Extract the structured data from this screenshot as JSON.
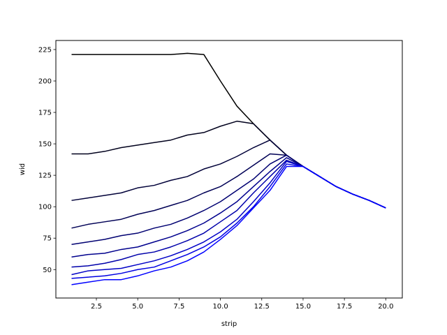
{
  "chart_data": {
    "type": "line",
    "title": "",
    "xlabel": "strip",
    "ylabel": "wid",
    "xlim": [
      0.05,
      21.0
    ],
    "ylim": [
      27.4,
      232.2
    ],
    "xticks": [
      2.5,
      5.0,
      7.5,
      10.0,
      12.5,
      15.0,
      17.5,
      20.0
    ],
    "xtick_labels": [
      "2.5",
      "5.0",
      "7.5",
      "10.0",
      "12.5",
      "15.0",
      "17.5",
      "20.0"
    ],
    "yticks": [
      50,
      75,
      100,
      125,
      150,
      175,
      200,
      225
    ],
    "ytick_labels": [
      "50",
      "75",
      "100",
      "125",
      "150",
      "175",
      "200",
      "225"
    ],
    "grid": false,
    "legend": "none",
    "x": [
      1,
      2,
      3,
      4,
      5,
      6,
      7,
      8,
      9,
      10,
      11,
      12,
      13,
      14,
      15,
      16,
      17,
      18,
      19,
      20
    ],
    "series": [
      {
        "color": "#000000",
        "values": [
          221,
          221,
          221,
          221,
          221,
          221,
          221,
          222,
          221,
          200,
          180,
          166,
          153,
          141,
          132,
          124,
          116,
          110,
          105,
          99
        ]
      },
      {
        "color": "#00001c",
        "values": [
          142,
          142,
          144,
          147,
          149,
          151,
          153,
          157,
          159,
          164,
          168,
          166,
          153,
          141,
          132,
          124,
          116,
          110,
          105,
          99
        ]
      },
      {
        "color": "#000038",
        "values": [
          105,
          107,
          109,
          111,
          115,
          117,
          121,
          124,
          130,
          134,
          140,
          147,
          153,
          141,
          132,
          124,
          116,
          110,
          105,
          99
        ]
      },
      {
        "color": "#000055",
        "values": [
          83,
          86,
          88,
          90,
          94,
          97,
          101,
          105,
          111,
          116,
          124,
          133,
          142,
          141,
          132,
          124,
          116,
          110,
          105,
          99
        ]
      },
      {
        "color": "#000071",
        "values": [
          70,
          72,
          74,
          77,
          79,
          83,
          86,
          91,
          97,
          104,
          113,
          122,
          134,
          141,
          132,
          124,
          116,
          110,
          105,
          99
        ]
      },
      {
        "color": "#00008d",
        "values": [
          60,
          62,
          63,
          66,
          68,
          72,
          76,
          81,
          87,
          95,
          104,
          116,
          128,
          139,
          132,
          124,
          116,
          110,
          105,
          99
        ]
      },
      {
        "color": "#0000aa",
        "values": [
          52,
          53,
          55,
          58,
          62,
          64,
          68,
          73,
          79,
          88,
          97,
          111,
          124,
          137,
          132,
          124,
          116,
          110,
          105,
          99
        ]
      },
      {
        "color": "#0000c6",
        "values": [
          46,
          49,
          50,
          51,
          54,
          57,
          61,
          66,
          72,
          80,
          90,
          104,
          119,
          136,
          132,
          124,
          116,
          110,
          105,
          99
        ]
      },
      {
        "color": "#0000e2",
        "values": [
          43,
          44,
          45,
          47,
          50,
          52,
          57,
          62,
          68,
          76,
          87,
          100,
          116,
          134,
          132,
          124,
          116,
          110,
          105,
          99
        ]
      },
      {
        "color": "#0000ff",
        "values": [
          38,
          40,
          42,
          42,
          45,
          49,
          52,
          57,
          64,
          74,
          85,
          99,
          113,
          132,
          132,
          124,
          116,
          110,
          105,
          99
        ]
      }
    ]
  }
}
